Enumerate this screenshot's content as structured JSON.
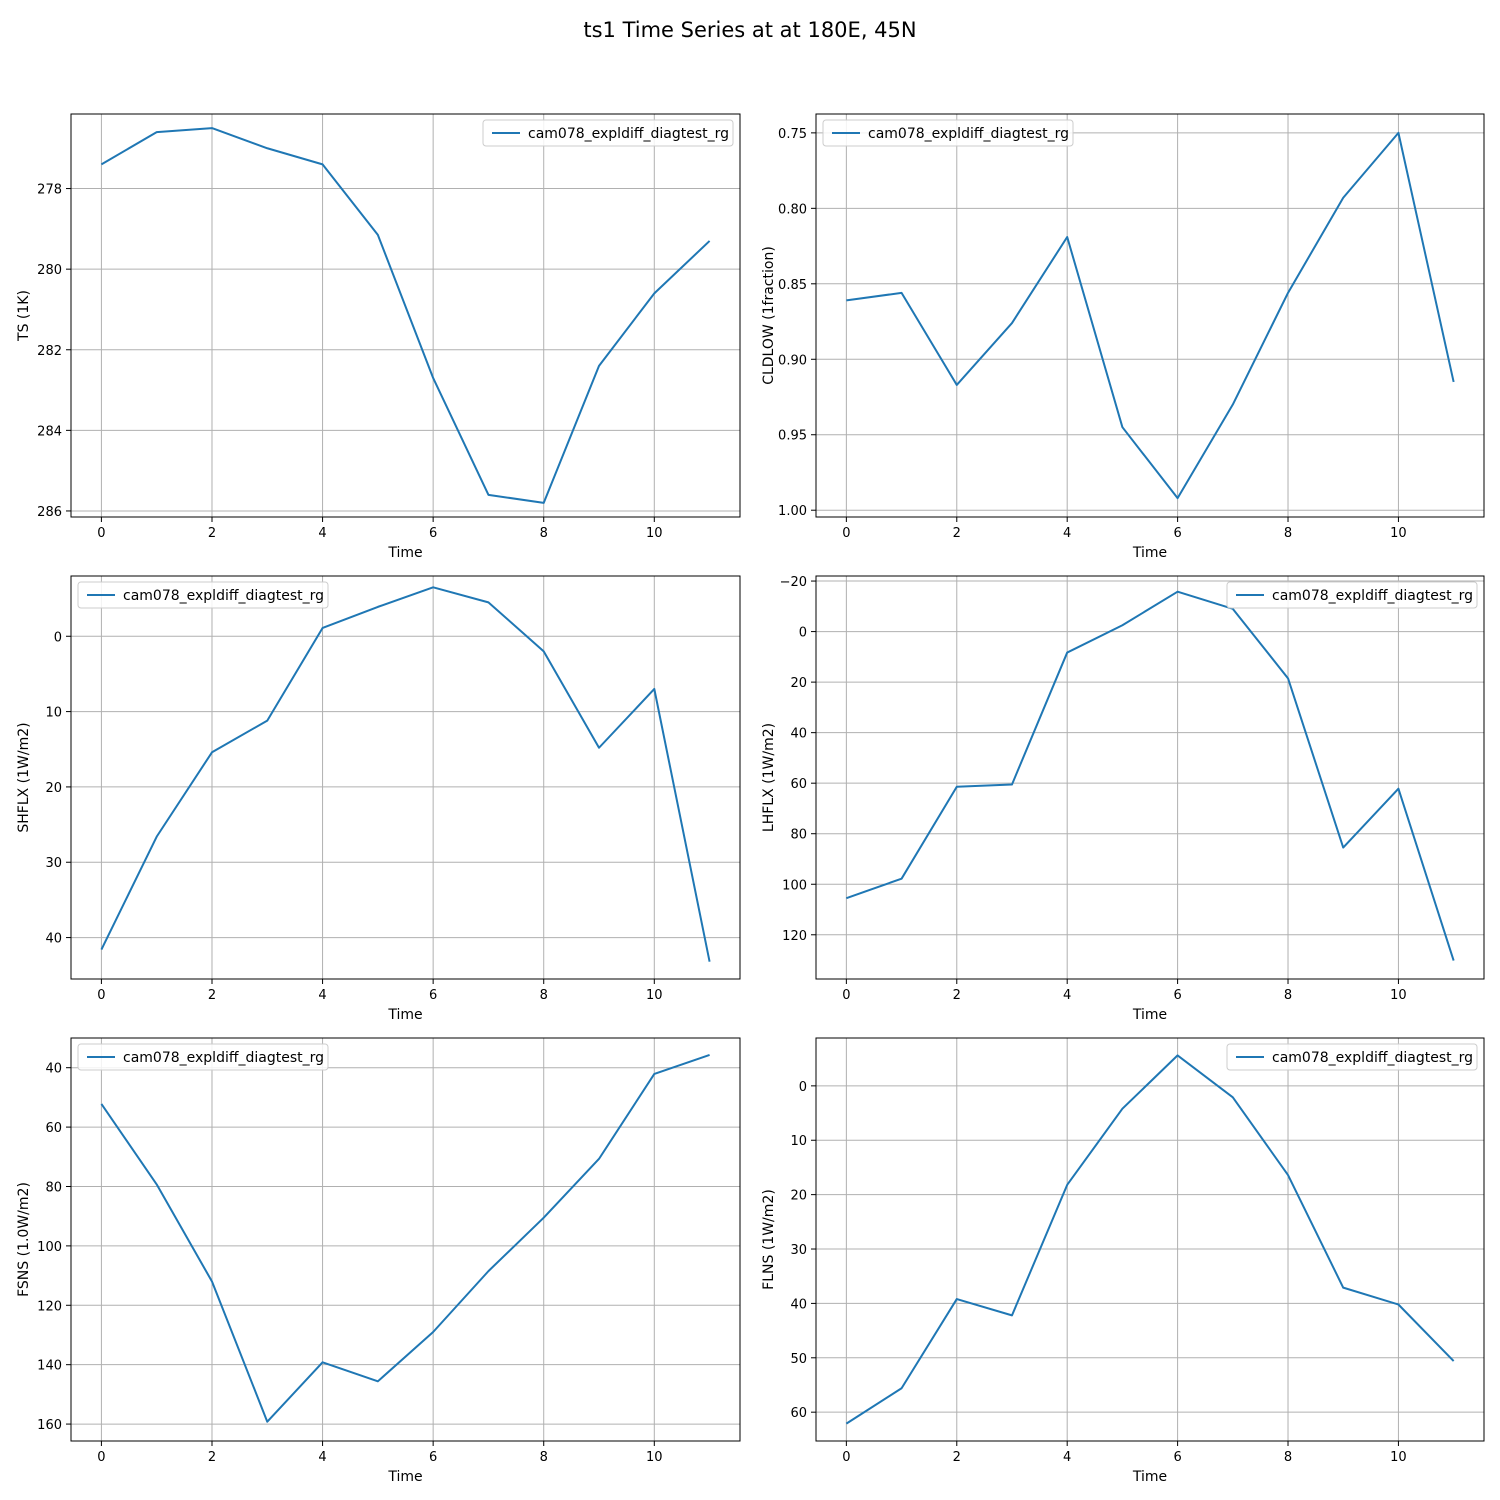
{
  "figure": {
    "title": "ts1 Time Series at at 180E, 45N"
  },
  "chart_data": [
    {
      "type": "line",
      "xlabel": "Time",
      "ylabel": "TS (1K)",
      "y_inverted": true,
      "grid": true,
      "legend": "upper right",
      "xlim": [
        -0.55,
        11.55
      ],
      "ylim": [
        276.15,
        286.15
      ],
      "xticks": [
        "0",
        "2",
        "4",
        "6",
        "8",
        "10"
      ],
      "yticks": [
        "278",
        "280",
        "282",
        "284",
        "286"
      ],
      "series": [
        {
          "name": "cam078_expldiff_diagtest_rg",
          "color": "#1f77b4",
          "x": [
            0,
            1,
            2,
            3,
            4,
            5,
            6,
            7,
            8,
            9,
            10,
            11
          ],
          "y": [
            277.4,
            276.6,
            276.5,
            277.0,
            277.4,
            279.15,
            282.7,
            285.6,
            285.8,
            282.4,
            280.6,
            279.3
          ]
        }
      ]
    },
    {
      "type": "line",
      "xlabel": "Time",
      "ylabel": "CLDLOW (1fraction)",
      "y_inverted": true,
      "grid": true,
      "legend": "upper left",
      "xlim": [
        -0.55,
        11.55
      ],
      "ylim": [
        0.7375,
        1.0045
      ],
      "xticks": [
        "0",
        "2",
        "4",
        "6",
        "8",
        "10"
      ],
      "yticks": [
        "0.75",
        "0.80",
        "0.85",
        "0.90",
        "0.95",
        "1.00"
      ],
      "series": [
        {
          "name": "cam078_expldiff_diagtest_rg",
          "color": "#1f77b4",
          "x": [
            0,
            1,
            2,
            3,
            4,
            5,
            6,
            7,
            8,
            9,
            10,
            11
          ],
          "y": [
            0.861,
            0.856,
            0.917,
            0.876,
            0.819,
            0.945,
            0.992,
            0.93,
            0.856,
            0.793,
            0.75,
            0.915
          ]
        }
      ]
    },
    {
      "type": "line",
      "xlabel": "Time",
      "ylabel": "SHFLX (1W/m2)",
      "y_inverted": true,
      "grid": true,
      "legend": "upper left",
      "xlim": [
        -0.55,
        11.55
      ],
      "ylim": [
        -8.0,
        45.5
      ],
      "xticks": [
        "0",
        "2",
        "4",
        "6",
        "8",
        "10"
      ],
      "yticks": [
        "0",
        "10",
        "20",
        "30",
        "40"
      ],
      "series": [
        {
          "name": "cam078_expldiff_diagtest_rg",
          "color": "#1f77b4",
          "x": [
            0,
            1,
            2,
            3,
            4,
            5,
            6,
            7,
            8,
            9,
            10,
            11
          ],
          "y": [
            41.6,
            26.6,
            15.4,
            11.2,
            -1.1,
            -3.9,
            -6.5,
            -4.5,
            2.0,
            14.8,
            7.0,
            43.2
          ]
        }
      ]
    },
    {
      "type": "line",
      "xlabel": "Time",
      "ylabel": "LHFLX (1W/m2)",
      "y_inverted": true,
      "grid": true,
      "legend": "upper right",
      "xlim": [
        -0.55,
        11.55
      ],
      "ylim": [
        -22.0,
        137.5
      ],
      "xticks": [
        "0",
        "2",
        "4",
        "6",
        "8",
        "10"
      ],
      "yticks": [
        "−20",
        "0",
        "20",
        "40",
        "60",
        "80",
        "100",
        "120"
      ],
      "series": [
        {
          "name": "cam078_expldiff_diagtest_rg",
          "color": "#1f77b4",
          "x": [
            0,
            1,
            2,
            3,
            4,
            5,
            6,
            7,
            8,
            9,
            10,
            11
          ],
          "y": [
            105.5,
            97.8,
            61.4,
            60.5,
            8.3,
            -2.5,
            -15.8,
            -9.0,
            18.5,
            85.5,
            62.2,
            130.2
          ]
        }
      ]
    },
    {
      "type": "line",
      "xlabel": "Time",
      "ylabel": "FSNS (1.0W/m2)",
      "y_inverted": true,
      "grid": true,
      "legend": "upper left",
      "xlim": [
        -0.55,
        11.55
      ],
      "ylim": [
        30.0,
        165.7
      ],
      "xticks": [
        "0",
        "2",
        "4",
        "6",
        "8",
        "10"
      ],
      "yticks": [
        "40",
        "60",
        "80",
        "100",
        "120",
        "140",
        "160"
      ],
      "series": [
        {
          "name": "cam078_expldiff_diagtest_rg",
          "color": "#1f77b4",
          "x": [
            0,
            1,
            2,
            3,
            4,
            5,
            6,
            7,
            8,
            9,
            10,
            11
          ],
          "y": [
            52.2,
            79.3,
            112.0,
            159.2,
            139.2,
            145.6,
            129.0,
            108.5,
            90.5,
            70.7,
            42.1,
            35.7
          ]
        }
      ]
    },
    {
      "type": "line",
      "xlabel": "Time",
      "ylabel": "FLNS (1W/m2)",
      "y_inverted": true,
      "grid": true,
      "legend": "upper right",
      "xlim": [
        -0.55,
        11.55
      ],
      "ylim": [
        -8.8,
        65.3
      ],
      "xticks": [
        "0",
        "2",
        "4",
        "6",
        "8",
        "10"
      ],
      "yticks": [
        "0",
        "10",
        "20",
        "30",
        "40",
        "50",
        "60"
      ],
      "series": [
        {
          "name": "cam078_expldiff_diagtest_rg",
          "color": "#1f77b4",
          "x": [
            0,
            1,
            2,
            3,
            4,
            5,
            6,
            7,
            8,
            9,
            10,
            11
          ],
          "y": [
            62.1,
            55.6,
            39.2,
            42.2,
            18.2,
            4.2,
            -5.6,
            2.1,
            16.4,
            37.1,
            40.2,
            50.6
          ]
        }
      ]
    }
  ]
}
